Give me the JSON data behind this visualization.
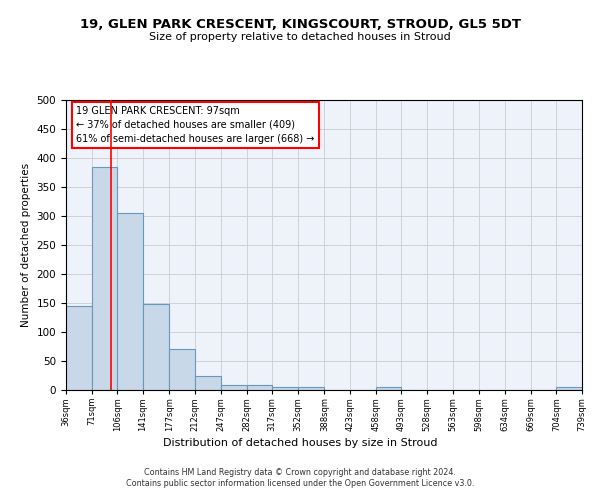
{
  "title1": "19, GLEN PARK CRESCENT, KINGSCOURT, STROUD, GL5 5DT",
  "title2": "Size of property relative to detached houses in Stroud",
  "xlabel": "Distribution of detached houses by size in Stroud",
  "ylabel": "Number of detached properties",
  "bin_edges": [
    36,
    71,
    106,
    141,
    177,
    212,
    247,
    282,
    317,
    352,
    388,
    423,
    458,
    493,
    528,
    563,
    598,
    634,
    669,
    704,
    739
  ],
  "bar_heights": [
    144,
    384,
    305,
    149,
    70,
    24,
    9,
    9,
    5,
    5,
    0,
    0,
    5,
    0,
    0,
    0,
    0,
    0,
    0,
    5
  ],
  "bar_color": "#c8d8e8",
  "bar_edge_color": "#6699bb",
  "bar_edge_width": 0.8,
  "grid_color": "#cccccc",
  "background_color": "#eef2fa",
  "red_line_x": 97,
  "annotation_text1": "19 GLEN PARK CRESCENT: 97sqm",
  "annotation_text2": "← 37% of detached houses are smaller (409)",
  "annotation_text3": "61% of semi-detached houses are larger (668) →",
  "footer_text": "Contains HM Land Registry data © Crown copyright and database right 2024.\nContains public sector information licensed under the Open Government Licence v3.0.",
  "tick_labels": [
    "36sqm",
    "71sqm",
    "106sqm",
    "141sqm",
    "177sqm",
    "212sqm",
    "247sqm",
    "282sqm",
    "317sqm",
    "352sqm",
    "388sqm",
    "423sqm",
    "458sqm",
    "493sqm",
    "528sqm",
    "563sqm",
    "598sqm",
    "634sqm",
    "669sqm",
    "704sqm",
    "739sqm"
  ],
  "ylim": [
    0,
    500
  ],
  "yticks": [
    0,
    50,
    100,
    150,
    200,
    250,
    300,
    350,
    400,
    450,
    500
  ]
}
